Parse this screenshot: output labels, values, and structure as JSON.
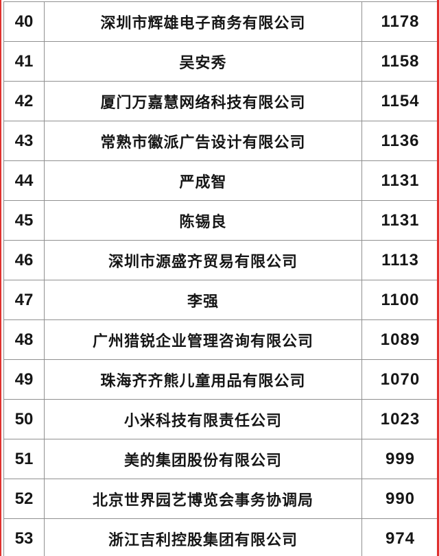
{
  "theme": {
    "edge": "#e0312e",
    "paper": "#ffffff",
    "grid": "#8f8f8f",
    "ink": "#161616"
  },
  "table": {
    "columns": [
      "rank",
      "name",
      "score"
    ],
    "rows": [
      {
        "rank": "40",
        "name": "深圳市辉雄电子商务有限公司",
        "score": "1178"
      },
      {
        "rank": "41",
        "name": "吴安秀",
        "score": "1158"
      },
      {
        "rank": "42",
        "name": "厦门万嘉慧网络科技有限公司",
        "score": "1154"
      },
      {
        "rank": "43",
        "name": "常熟市徽派广告设计有限公司",
        "score": "1136"
      },
      {
        "rank": "44",
        "name": "严成智",
        "score": "1131"
      },
      {
        "rank": "45",
        "name": "陈锡良",
        "score": "1131"
      },
      {
        "rank": "46",
        "name": "深圳市源盛齐贸易有限公司",
        "score": "1113"
      },
      {
        "rank": "47",
        "name": "李强",
        "score": "1100"
      },
      {
        "rank": "48",
        "name": "广州猎锐企业管理咨询有限公司",
        "score": "1089"
      },
      {
        "rank": "49",
        "name": "珠海齐齐熊儿童用品有限公司",
        "score": "1070"
      },
      {
        "rank": "50",
        "name": "小米科技有限责任公司",
        "score": "1023"
      },
      {
        "rank": "51",
        "name": "美的集团股份有限公司",
        "score": "999"
      },
      {
        "rank": "52",
        "name": "北京世界园艺博览会事务协调局",
        "score": "990"
      },
      {
        "rank": "53",
        "name": "浙江吉利控股集团有限公司",
        "score": "974"
      }
    ]
  }
}
